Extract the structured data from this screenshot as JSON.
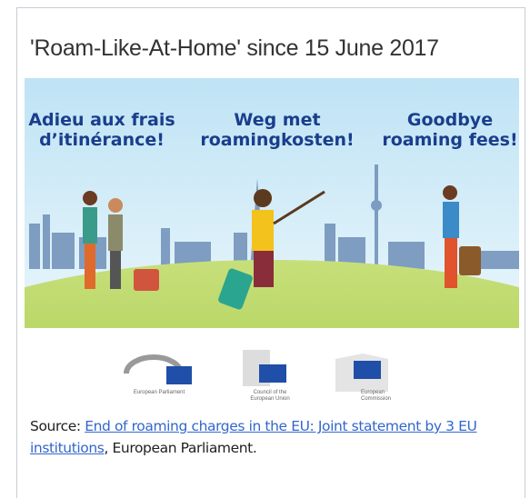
{
  "title": "'Roam-Like-At-Home' since 15 June 2017",
  "image": {
    "slogans": [
      [
        "Adieu aux frais",
        "d’itinérance!"
      ],
      [
        "Weg met",
        "roamingkosten!"
      ],
      [
        "Goodbye",
        "roaming fees!"
      ]
    ]
  },
  "logos": [
    [
      "European Parliament"
    ],
    [
      "Council of the",
      "European Union"
    ],
    [
      "European",
      "Commission"
    ]
  ],
  "caption": {
    "prefix": "Source: ",
    "link": "End of roaming charges in the EU: Joint statement by 3 EU institutions",
    "suffix": ", European Parliament."
  }
}
